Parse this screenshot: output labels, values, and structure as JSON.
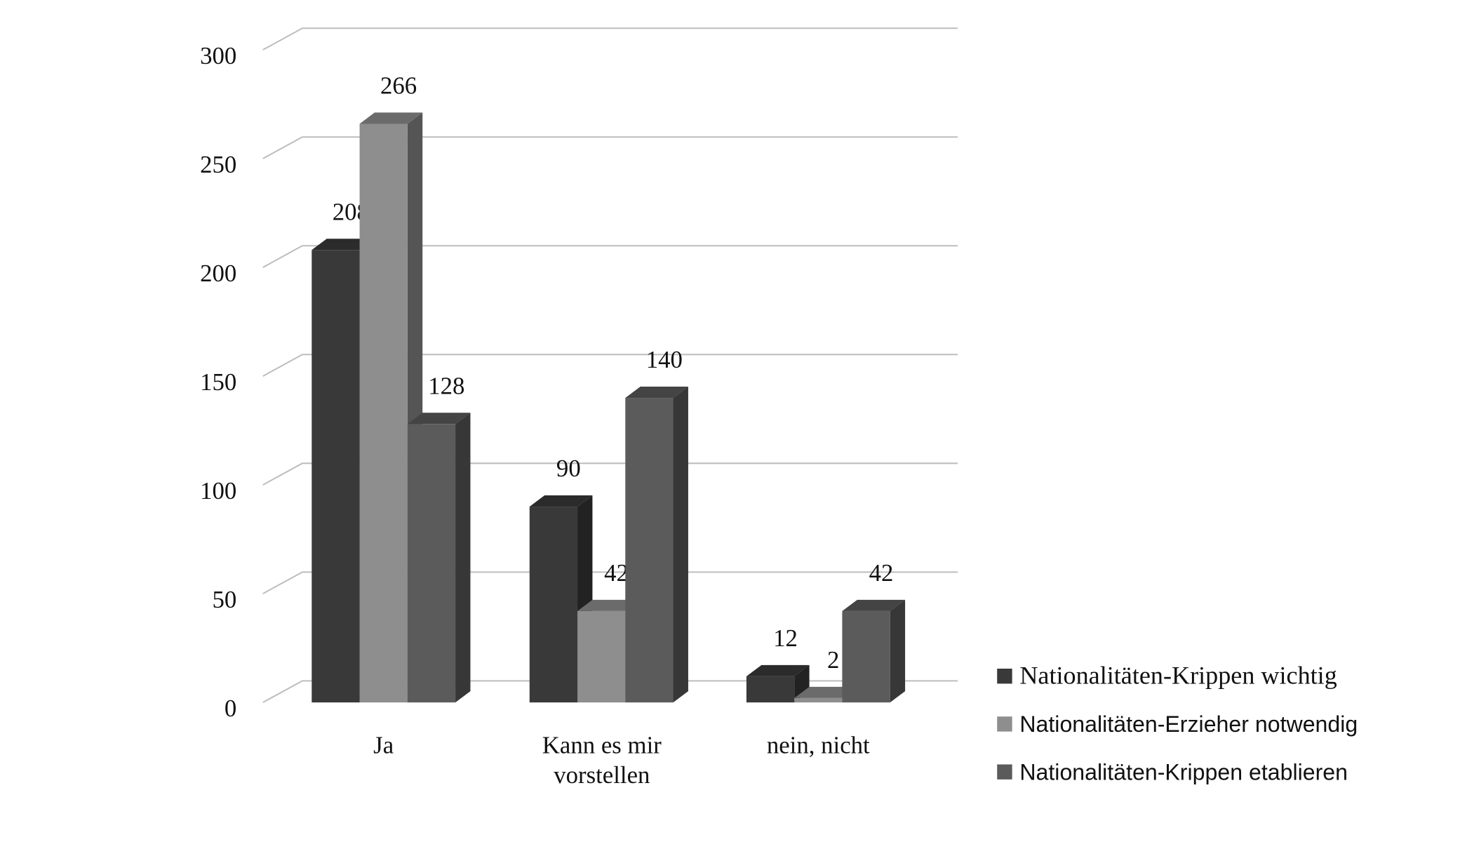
{
  "chart_data": {
    "type": "bar3d",
    "categories": [
      "Ja",
      "Kann es mir vorstellen",
      "nein, nicht"
    ],
    "series": [
      {
        "name": "Nationalitäten-Krippen wichtig",
        "color": "#393939",
        "values": [
          208,
          90,
          12
        ]
      },
      {
        "name": "Nationalitäten-Erzieher notwendig",
        "color": "#8e8e8e",
        "values": [
          266,
          42,
          2
        ]
      },
      {
        "name": "Nationalitäten-Krippen etablieren",
        "color": "#5b5b5b",
        "values": [
          128,
          140,
          42
        ]
      }
    ],
    "ylim": [
      0,
      300
    ],
    "yticks": [
      0,
      50,
      100,
      150,
      200,
      250,
      300
    ],
    "grid": true,
    "legend": "right"
  }
}
